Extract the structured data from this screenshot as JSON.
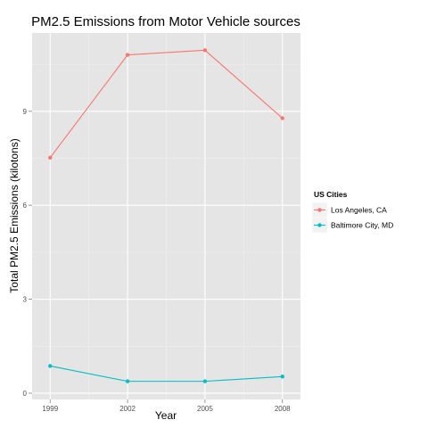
{
  "chart_data": {
    "type": "line",
    "title": "PM2.5 Emissions from Motor Vehicle sources",
    "xlabel": "Year",
    "ylabel": "Total PM2.5 Emissions (kilotons)",
    "x": [
      1999,
      2002,
      2005,
      2008
    ],
    "x_ticks": [
      "1999",
      "2002",
      "2005",
      "2008"
    ],
    "xlim": [
      1998.3,
      2008.7
    ],
    "y_ticks": [
      "0",
      "3",
      "6",
      "9"
    ],
    "y_tick_values": [
      0,
      3,
      6,
      9
    ],
    "ylim": [
      -0.2,
      11.5
    ],
    "grid": true,
    "legend_title": "US Cities",
    "legend_position": "right",
    "series": [
      {
        "name": "Los Angeles, CA",
        "color": "#F8766D",
        "values": [
          7.52,
          10.8,
          10.95,
          8.78
        ]
      },
      {
        "name": "Baltimore City, MD",
        "color": "#00BFC4",
        "values": [
          0.87,
          0.38,
          0.38,
          0.53
        ]
      }
    ]
  }
}
